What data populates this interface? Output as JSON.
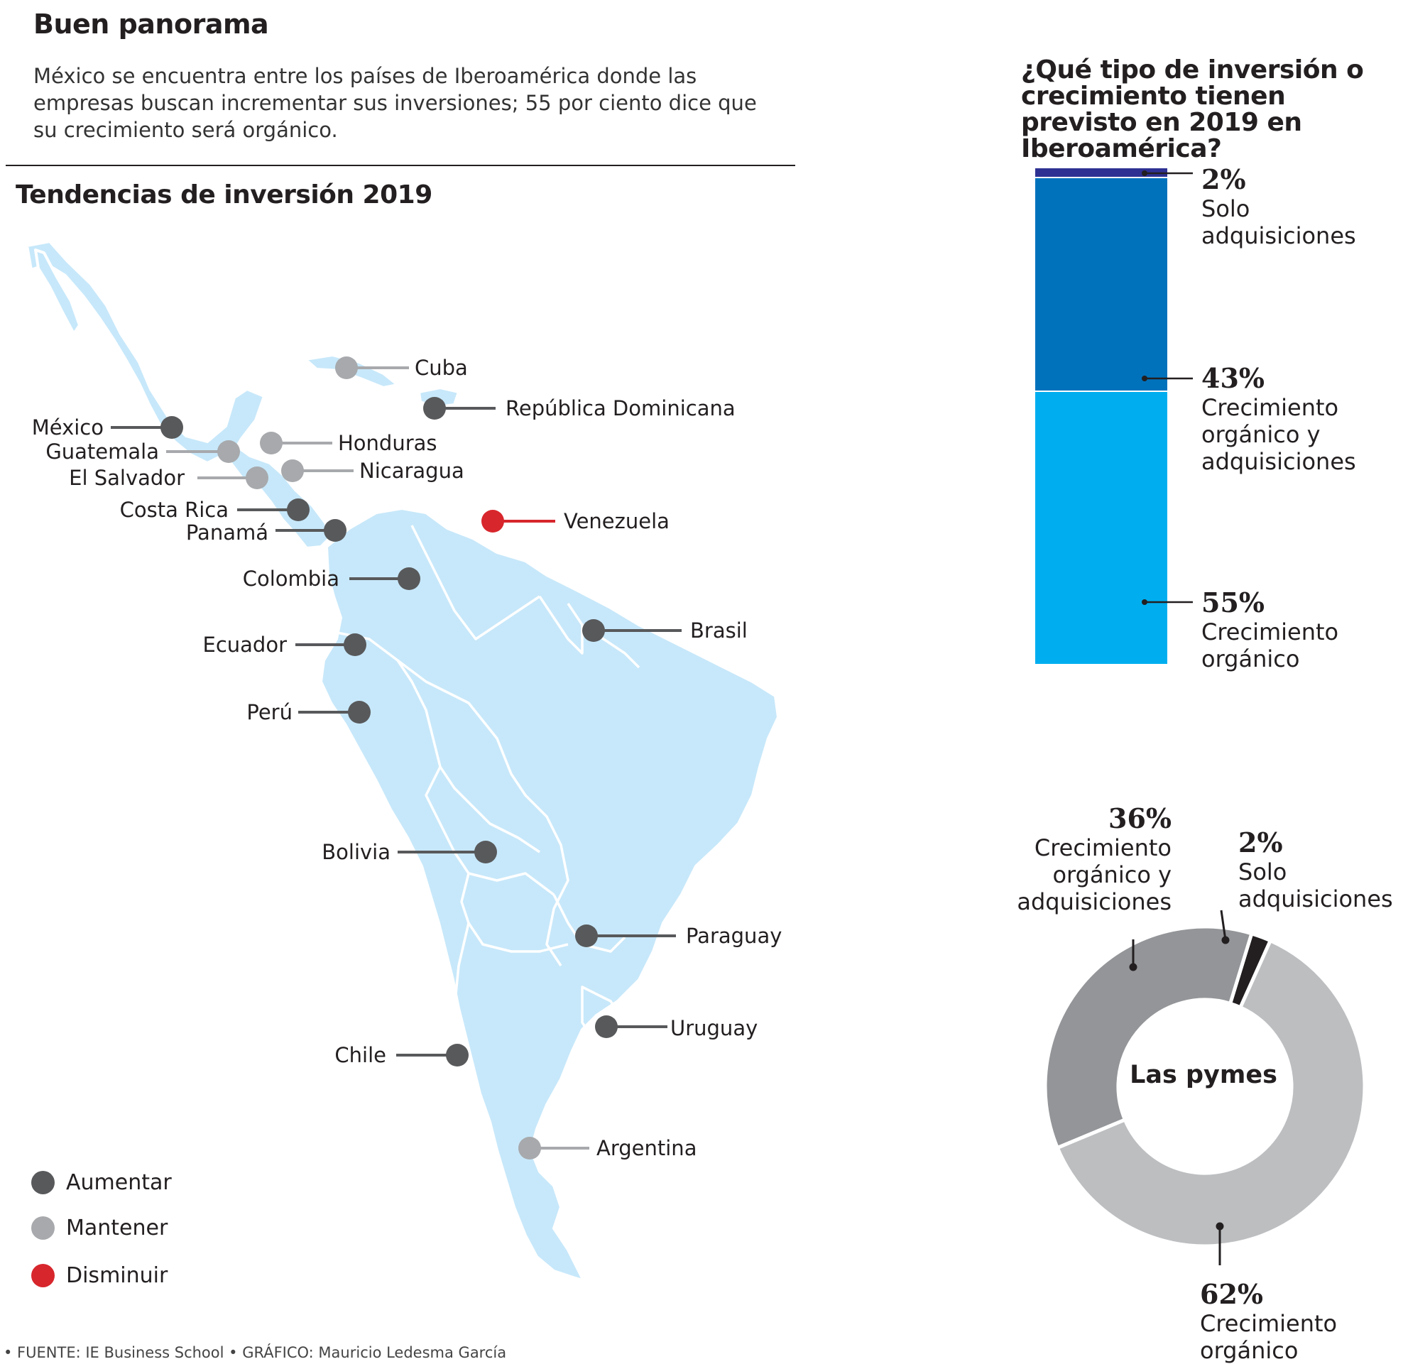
{
  "header": {
    "title": "Buen panorama",
    "intro": "México se encuentra entre los países de Iberoamérica donde las empresas buscan incrementar sus inversiones; 55 por ciento dice que su crecimiento será orgánico."
  },
  "map": {
    "title": "Tendencias de inversión 2019",
    "countries": [
      {
        "name": "Cuba",
        "trend": "Mantener"
      },
      {
        "name": "República Dominicana",
        "trend": "Aumentar"
      },
      {
        "name": "México",
        "trend": "Aumentar"
      },
      {
        "name": "Guatemala",
        "trend": "Mantener"
      },
      {
        "name": "Honduras",
        "trend": "Mantener"
      },
      {
        "name": "El Salvador",
        "trend": "Mantener"
      },
      {
        "name": "Nicaragua",
        "trend": "Mantener"
      },
      {
        "name": "Costa Rica",
        "trend": "Aumentar"
      },
      {
        "name": "Panamá",
        "trend": "Aumentar"
      },
      {
        "name": "Venezuela",
        "trend": "Disminuir"
      },
      {
        "name": "Colombia",
        "trend": "Aumentar"
      },
      {
        "name": "Brasil",
        "trend": "Aumentar"
      },
      {
        "name": "Ecuador",
        "trend": "Aumentar"
      },
      {
        "name": "Perú",
        "trend": "Aumentar"
      },
      {
        "name": "Bolivia",
        "trend": "Aumentar"
      },
      {
        "name": "Paraguay",
        "trend": "Aumentar"
      },
      {
        "name": "Uruguay",
        "trend": "Aumentar"
      },
      {
        "name": "Chile",
        "trend": "Aumentar"
      },
      {
        "name": "Argentina",
        "trend": "Mantener"
      }
    ],
    "legend": [
      {
        "label": "Aumentar",
        "color": "#58595b"
      },
      {
        "label": "Mantener",
        "color": "#a7a9ac"
      },
      {
        "label": "Disminuir",
        "color": "#d7262c"
      }
    ]
  },
  "source": "• FUENTE: IE Business School • GRÁFICO: Mauricio Ledesma García",
  "chart_data": [
    {
      "type": "bar",
      "title": "¿Qué tipo de inversión o crecimiento tienen previsto en 2019 en Iberoamérica?",
      "stacked": true,
      "segments": [
        {
          "label": "Solo adquisiciones",
          "value": 2,
          "pct_text": "2%",
          "color": "#2e3192"
        },
        {
          "label": "Crecimiento orgánico y adquisiciones",
          "value": 43,
          "pct_text": "43%",
          "color": "#0072bc"
        },
        {
          "label": "Crecimiento orgánico",
          "value": 55,
          "pct_text": "55%",
          "color": "#00aeef"
        }
      ]
    },
    {
      "type": "pie",
      "title": "Las pymes",
      "donut": true,
      "slices": [
        {
          "label": "Solo adquisiciones",
          "value": 2,
          "pct_text": "2%",
          "color": "#231f20"
        },
        {
          "label": "Crecimiento orgánico",
          "value": 62,
          "pct_text": "62%",
          "color": "#bcbec0"
        },
        {
          "label": "Crecimiento orgánico y adquisiciones",
          "value": 36,
          "pct_text": "36%",
          "color": "#939598"
        }
      ]
    }
  ]
}
